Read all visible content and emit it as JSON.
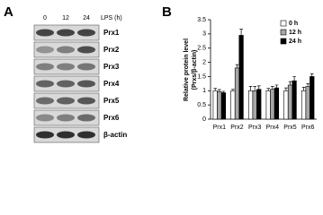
{
  "panel_a": {
    "label": "A",
    "lanes": [
      "0",
      "12",
      "24"
    ],
    "lane_title": "LPS (h)",
    "rows": [
      "Prx1",
      "Prx2",
      "Prx3",
      "Prx4",
      "Prx5",
      "Prx6",
      "β-actin"
    ]
  },
  "chart_data": {
    "type": "bar",
    "panel_label": "B",
    "y_label": [
      "Relative protein level",
      "(Prxs/β-actin)"
    ],
    "categories": [
      "Prx1",
      "Prx2",
      "Prx3",
      "Prx4",
      "Prx5",
      "Prx6"
    ],
    "series": [
      {
        "name": "0 h",
        "color": "#ffffff",
        "values": [
          1.0,
          1.0,
          1.0,
          1.0,
          1.0,
          1.0
        ],
        "errors": [
          0.08,
          0.05,
          0.15,
          0.08,
          0.1,
          0.12
        ]
      },
      {
        "name": "12 h",
        "color": "#a6a6a6",
        "values": [
          0.97,
          1.8,
          1.0,
          1.05,
          1.2,
          1.15
        ],
        "errors": [
          0.07,
          0.12,
          0.15,
          0.1,
          0.12,
          0.1
        ]
      },
      {
        "name": "24 h",
        "color": "#000000",
        "values": [
          0.93,
          2.95,
          1.05,
          1.1,
          1.35,
          1.5
        ],
        "errors": [
          0.05,
          0.22,
          0.12,
          0.1,
          0.15,
          0.1
        ]
      }
    ],
    "ylim": [
      0,
      3.5
    ],
    "yticks": [
      0,
      0.5,
      1,
      1.5,
      2,
      2.5,
      3,
      3.5
    ],
    "legend": "top-right"
  }
}
